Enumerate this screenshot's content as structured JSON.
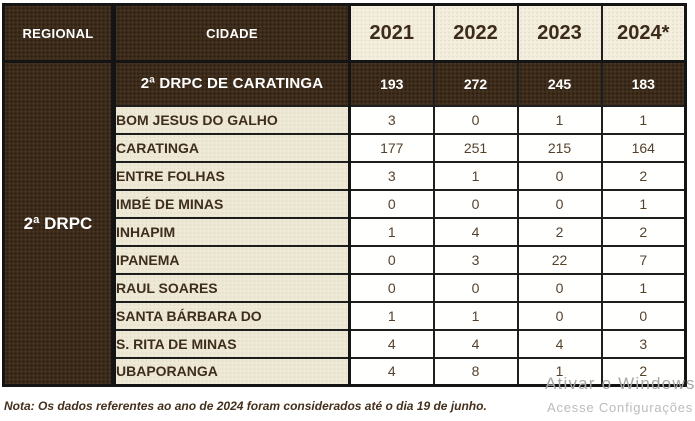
{
  "colors": {
    "header_brown": "#3d2b1a",
    "year_header_cream": "#f3eedd",
    "city_cell_beige": "#eee9d6",
    "value_cell_white": "#fffffe",
    "border_black": "#141414",
    "header_text_white": "#ffffff",
    "body_text_brown": "#3e2d1b",
    "note_brown": "#44301d",
    "watermark_gray": "#a7a7a7"
  },
  "chart_data": {
    "type": "table",
    "title": "",
    "columns": [
      "REGIONAL",
      "CIDADE",
      "2021",
      "2022",
      "2023",
      "2024*"
    ],
    "regional_label": "2ª DRPC",
    "summary_row": {
      "cidade": "2ª DRPC DE CARATINGA",
      "values": [
        193,
        272,
        245,
        183
      ]
    },
    "rows": [
      {
        "cidade": "BOM JESUS DO GALHO",
        "values": [
          3,
          0,
          1,
          1
        ]
      },
      {
        "cidade": "CARATINGA",
        "values": [
          177,
          251,
          215,
          164
        ]
      },
      {
        "cidade": "ENTRE FOLHAS",
        "values": [
          3,
          1,
          0,
          2
        ]
      },
      {
        "cidade": "IMBÉ DE MINAS",
        "values": [
          0,
          0,
          0,
          1
        ]
      },
      {
        "cidade": "INHAPIM",
        "values": [
          1,
          4,
          2,
          2
        ]
      },
      {
        "cidade": "IPANEMA",
        "values": [
          0,
          3,
          22,
          7
        ]
      },
      {
        "cidade": "RAUL SOARES",
        "values": [
          0,
          0,
          0,
          1
        ]
      },
      {
        "cidade": "SANTA BÁRBARA DO",
        "values": [
          1,
          1,
          0,
          0
        ]
      },
      {
        "cidade": "S. RITA DE MINAS",
        "values": [
          4,
          4,
          4,
          3
        ]
      },
      {
        "cidade": "UBAPORANGA",
        "values": [
          4,
          8,
          1,
          2
        ]
      }
    ]
  },
  "note": "Nota: Os dados referentes ao ano de 2024 foram considerados até o dia 19 de junho.",
  "watermark": {
    "line1": "Ativar o Windows",
    "line2": "Acesse Configurações"
  }
}
